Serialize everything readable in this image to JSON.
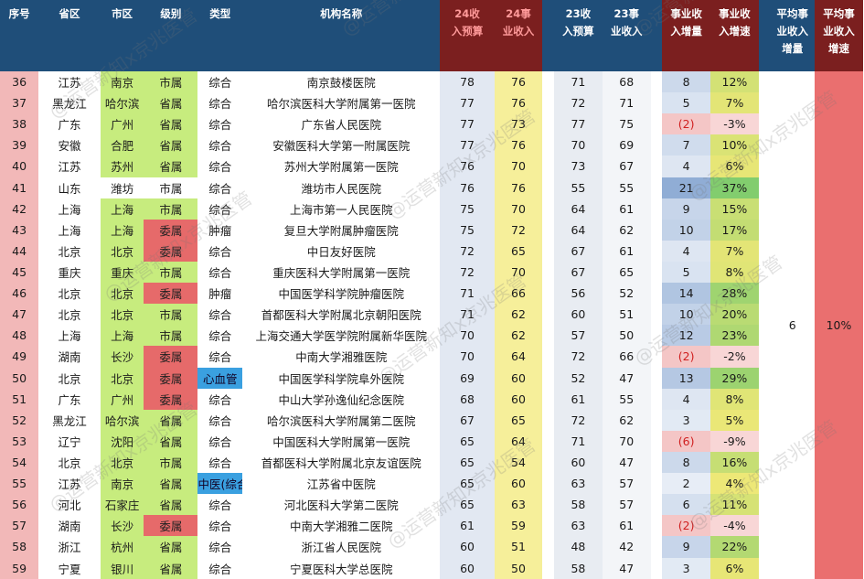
{
  "headers": {
    "seq": "序号",
    "province": "省区",
    "city": "市区",
    "level": "级别",
    "type": "类型",
    "name": "机构名称",
    "b24": [
      "24收",
      "入预算"
    ],
    "i24": [
      "24事",
      "业收入"
    ],
    "b23": [
      "23收",
      "入预算"
    ],
    "i23": [
      "23事",
      "业收入"
    ],
    "inc": [
      "事业收",
      "入增量"
    ],
    "grw": [
      "事业收",
      "入增速"
    ],
    "avg_inc": [
      "平均事",
      "业收入",
      "增量"
    ],
    "avg_grw": [
      "平均事",
      "业收入",
      "增速"
    ]
  },
  "summary": {
    "avg_inc": "6",
    "avg_grw": "10%"
  },
  "colors": {
    "header_blue": "#1f4e79",
    "header_red": "#7b1f1f",
    "green": "#c7ec7e",
    "red_level": "#e66a6a",
    "blue_type": "#3aa0e0",
    "yellow": "#f6ef9a"
  },
  "watermark": "@运营新知x京兆医管",
  "rows": [
    {
      "seq": "36",
      "province": "江苏",
      "city": "南京",
      "level": "市属",
      "type": "综合",
      "name": "南京鼓楼医院",
      "b24": "78",
      "i24": "76",
      "b23": "71",
      "i23": "68",
      "inc": "8",
      "grw": "12%"
    },
    {
      "seq": "37",
      "province": "黑龙江",
      "city": "哈尔滨",
      "level": "省属",
      "type": "综合",
      "name": "哈尔滨医科大学附属第一医院",
      "b24": "77",
      "i24": "76",
      "b23": "72",
      "i23": "71",
      "inc": "5",
      "grw": "7%"
    },
    {
      "seq": "38",
      "province": "广东",
      "city": "广州",
      "level": "省属",
      "type": "综合",
      "name": "广东省人民医院",
      "b24": "77",
      "i24": "73",
      "b23": "77",
      "i23": "75",
      "inc": "(2)",
      "grw": "-3%"
    },
    {
      "seq": "39",
      "province": "安徽",
      "city": "合肥",
      "level": "省属",
      "type": "综合",
      "name": "安徽医科大学第一附属医院",
      "b24": "77",
      "i24": "76",
      "b23": "70",
      "i23": "69",
      "inc": "7",
      "grw": "10%"
    },
    {
      "seq": "40",
      "province": "江苏",
      "city": "苏州",
      "level": "省属",
      "type": "综合",
      "name": "苏州大学附属第一医院",
      "b24": "76",
      "i24": "70",
      "b23": "73",
      "i23": "67",
      "inc": "4",
      "grw": "6%"
    },
    {
      "seq": "41",
      "province": "山东",
      "city": "潍坊",
      "level": "市属",
      "type": "综合",
      "name": "潍坊市人民医院",
      "b24": "76",
      "i24": "76",
      "b23": "55",
      "i23": "55",
      "inc": "21",
      "grw": "37%"
    },
    {
      "seq": "42",
      "province": "上海",
      "city": "上海",
      "level": "市属",
      "type": "综合",
      "name": "上海市第一人民医院",
      "b24": "75",
      "i24": "70",
      "b23": "64",
      "i23": "61",
      "inc": "9",
      "grw": "15%"
    },
    {
      "seq": "43",
      "province": "上海",
      "city": "上海",
      "level": "委属",
      "type": "肿瘤",
      "name": "复旦大学附属肿瘤医院",
      "b24": "75",
      "i24": "72",
      "b23": "64",
      "i23": "62",
      "inc": "10",
      "grw": "17%"
    },
    {
      "seq": "44",
      "province": "北京",
      "city": "北京",
      "level": "委属",
      "type": "综合",
      "name": "中日友好医院",
      "b24": "72",
      "i24": "65",
      "b23": "67",
      "i23": "61",
      "inc": "4",
      "grw": "7%"
    },
    {
      "seq": "45",
      "province": "重庆",
      "city": "重庆",
      "level": "市属",
      "type": "综合",
      "name": "重庆医科大学附属第一医院",
      "b24": "72",
      "i24": "70",
      "b23": "67",
      "i23": "65",
      "inc": "5",
      "grw": "8%"
    },
    {
      "seq": "46",
      "province": "北京",
      "city": "北京",
      "level": "委属",
      "type": "肿瘤",
      "name": "中国医学科学院肿瘤医院",
      "b24": "71",
      "i24": "66",
      "b23": "56",
      "i23": "52",
      "inc": "14",
      "grw": "28%"
    },
    {
      "seq": "47",
      "province": "北京",
      "city": "北京",
      "level": "市属",
      "type": "综合",
      "name": "首都医科大学附属北京朝阳医院",
      "b24": "71",
      "i24": "62",
      "b23": "60",
      "i23": "51",
      "inc": "10",
      "grw": "20%"
    },
    {
      "seq": "48",
      "province": "上海",
      "city": "上海",
      "level": "市属",
      "type": "综合",
      "name": "上海交通大学医学院附属新华医院",
      "b24": "70",
      "i24": "62",
      "b23": "57",
      "i23": "50",
      "inc": "12",
      "grw": "23%"
    },
    {
      "seq": "49",
      "province": "湖南",
      "city": "长沙",
      "level": "委属",
      "type": "综合",
      "name": "中南大学湘雅医院",
      "b24": "70",
      "i24": "64",
      "b23": "72",
      "i23": "66",
      "inc": "(2)",
      "grw": "-2%"
    },
    {
      "seq": "50",
      "province": "北京",
      "city": "北京",
      "level": "委属",
      "type": "心血管",
      "name": "中国医学科学院阜外医院",
      "b24": "69",
      "i24": "60",
      "b23": "52",
      "i23": "47",
      "inc": "13",
      "grw": "29%"
    },
    {
      "seq": "51",
      "province": "广东",
      "city": "广州",
      "level": "委属",
      "type": "综合",
      "name": "中山大学孙逸仙纪念医院",
      "b24": "68",
      "i24": "60",
      "b23": "61",
      "i23": "55",
      "inc": "4",
      "grw": "8%"
    },
    {
      "seq": "52",
      "province": "黑龙江",
      "city": "哈尔滨",
      "level": "省属",
      "type": "综合",
      "name": "哈尔滨医科大学附属第二医院",
      "b24": "67",
      "i24": "65",
      "b23": "72",
      "i23": "62",
      "inc": "3",
      "grw": "5%"
    },
    {
      "seq": "53",
      "province": "辽宁",
      "city": "沈阳",
      "level": "省属",
      "type": "综合",
      "name": "中国医科大学附属第一医院",
      "b24": "65",
      "i24": "64",
      "b23": "71",
      "i23": "70",
      "inc": "(6)",
      "grw": "-9%"
    },
    {
      "seq": "54",
      "province": "北京",
      "city": "北京",
      "level": "市属",
      "type": "综合",
      "name": "首都医科大学附属北京友谊医院",
      "b24": "65",
      "i24": "54",
      "b23": "60",
      "i23": "47",
      "inc": "8",
      "grw": "16%"
    },
    {
      "seq": "55",
      "province": "江苏",
      "city": "南京",
      "level": "省属",
      "type": "中医(综合",
      "name": "江苏省中医院",
      "b24": "65",
      "i24": "60",
      "b23": "63",
      "i23": "57",
      "inc": "2",
      "grw": "4%"
    },
    {
      "seq": "56",
      "province": "河北",
      "city": "石家庄",
      "level": "省属",
      "type": "综合",
      "name": "河北医科大学第二医院",
      "b24": "65",
      "i24": "63",
      "b23": "58",
      "i23": "57",
      "inc": "6",
      "grw": "11%"
    },
    {
      "seq": "57",
      "province": "湖南",
      "city": "长沙",
      "level": "委属",
      "type": "综合",
      "name": "中南大学湘雅二医院",
      "b24": "61",
      "i24": "59",
      "b23": "63",
      "i23": "61",
      "inc": "(2)",
      "grw": "-4%"
    },
    {
      "seq": "58",
      "province": "浙江",
      "city": "杭州",
      "level": "省属",
      "type": "综合",
      "name": "浙江省人民医院",
      "b24": "60",
      "i24": "51",
      "b23": "48",
      "i23": "42",
      "inc": "9",
      "grw": "22%"
    },
    {
      "seq": "59",
      "province": "宁夏",
      "city": "银川",
      "level": "省属",
      "type": "综合",
      "name": "宁夏医科大学总医院",
      "b24": "60",
      "i24": "50",
      "b23": "58",
      "i23": "47",
      "inc": "3",
      "grw": "6%"
    }
  ]
}
